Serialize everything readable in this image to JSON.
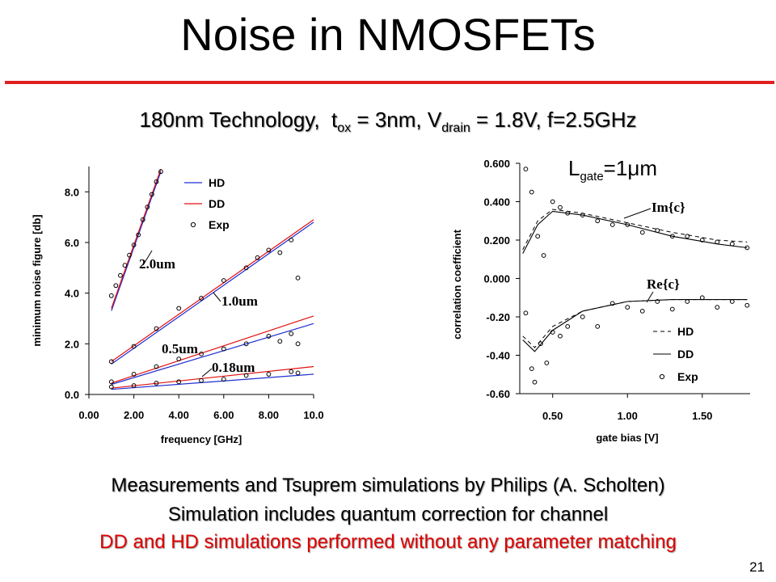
{
  "slide": {
    "title": "Noise in NMOSFETs",
    "subtitle_main": "180nm Technology,",
    "subtitle_t": "t",
    "subtitle_t_sub": "ox",
    "subtitle_mid": " = 3nm, V",
    "subtitle_v_sub": "drain",
    "subtitle_end": " = 1.8V, f=2.5GHz",
    "lgate_L": "L",
    "lgate_sub": "gate",
    "lgate_eq": "=1",
    "lgate_mu": "μ",
    "lgate_unit": "m",
    "bottom_lines": [
      "Measurements and Tsuprem simulations by Philips (A. Scholten)",
      "Simulation includes quantum correction for channel",
      "DD and HD simulations performed without any parameter matching"
    ],
    "page_number": "21"
  },
  "colors": {
    "accent_red": "#e02020",
    "hd_line": "#1f2fd0",
    "dd_line": "#e01010"
  },
  "chart_data": [
    {
      "type": "line",
      "title": "",
      "xlabel": "frequency  [GHz]",
      "ylabel": "minimum noise figure  [db]",
      "xlim": [
        0,
        10
      ],
      "ylim": [
        0,
        9
      ],
      "xticks": [
        "0.00",
        "2.00",
        "4.00",
        "6.00",
        "8.00",
        "10.0"
      ],
      "yticks": [
        "0.0",
        "2.0",
        "4.0",
        "6.0",
        "8.0"
      ],
      "legend": [
        "HD",
        "DD",
        "Exp"
      ],
      "legend_position": "top-right",
      "annotations": [
        "2.0um",
        "1.0um",
        "0.5um",
        "0.18um"
      ],
      "series": [
        {
          "annotation": "2.0um",
          "hd": [
            [
              1.0,
              3.3
            ],
            [
              3.2,
              8.8
            ]
          ],
          "dd": [
            [
              1.0,
              3.4
            ],
            [
              3.2,
              8.9
            ]
          ],
          "exp": [
            [
              1.0,
              3.9
            ],
            [
              1.2,
              4.3
            ],
            [
              1.4,
              4.7
            ],
            [
              1.6,
              5.1
            ],
            [
              1.8,
              5.5
            ],
            [
              2.0,
              5.9
            ],
            [
              2.2,
              6.3
            ],
            [
              2.4,
              6.9
            ],
            [
              2.6,
              7.4
            ],
            [
              2.8,
              7.9
            ],
            [
              3.0,
              8.4
            ],
            [
              3.2,
              8.8
            ]
          ]
        },
        {
          "annotation": "1.0um",
          "hd": [
            [
              1.0,
              1.2
            ],
            [
              10.0,
              6.8
            ]
          ],
          "dd": [
            [
              1.0,
              1.3
            ],
            [
              10.0,
              6.9
            ]
          ],
          "exp": [
            [
              1.0,
              1.3
            ],
            [
              2.0,
              1.9
            ],
            [
              3.0,
              2.6
            ],
            [
              4.0,
              3.4
            ],
            [
              5.0,
              3.8
            ],
            [
              6.0,
              4.5
            ],
            [
              7.0,
              5.0
            ],
            [
              7.5,
              5.4
            ],
            [
              8.0,
              5.7
            ],
            [
              8.5,
              5.6
            ],
            [
              9.0,
              6.1
            ],
            [
              9.3,
              4.6
            ]
          ]
        },
        {
          "annotation": "0.5um",
          "hd": [
            [
              1.0,
              0.4
            ],
            [
              10.0,
              2.8
            ]
          ],
          "dd": [
            [
              1.0,
              0.45
            ],
            [
              10.0,
              3.1
            ]
          ],
          "exp": [
            [
              1.0,
              0.5
            ],
            [
              2.0,
              0.8
            ],
            [
              3.0,
              1.1
            ],
            [
              4.0,
              1.4
            ],
            [
              5.0,
              1.6
            ],
            [
              6.0,
              1.8
            ],
            [
              7.0,
              2.0
            ],
            [
              8.0,
              2.3
            ],
            [
              8.5,
              2.1
            ],
            [
              9.0,
              2.4
            ],
            [
              9.3,
              2.0
            ]
          ]
        },
        {
          "annotation": "0.18um",
          "hd": [
            [
              1.0,
              0.2
            ],
            [
              10.0,
              0.8
            ]
          ],
          "dd": [
            [
              1.0,
              0.25
            ],
            [
              10.0,
              1.1
            ]
          ],
          "exp": [
            [
              1.0,
              0.3
            ],
            [
              2.0,
              0.35
            ],
            [
              3.0,
              0.45
            ],
            [
              4.0,
              0.5
            ],
            [
              5.0,
              0.55
            ],
            [
              6.0,
              0.6
            ],
            [
              7.0,
              0.75
            ],
            [
              8.0,
              0.8
            ],
            [
              9.0,
              0.9
            ],
            [
              9.3,
              0.85
            ]
          ]
        }
      ]
    },
    {
      "type": "line",
      "title": "",
      "xlabel": "gate bias  [V]",
      "ylabel": "correlation coefficient",
      "xlim": [
        0.28,
        1.82
      ],
      "ylim": [
        -0.6,
        0.6
      ],
      "xticks": [
        "0.50",
        "1.00",
        "1.50"
      ],
      "yticks": [
        "0.600",
        "0.400",
        "0.200",
        "0.000",
        "-0.20",
        "-0.40",
        "-0.60"
      ],
      "legend": [
        "HD",
        "DD",
        "Exp"
      ],
      "legend_position": "bottom-right",
      "annotations": [
        "Im{c}",
        "Re{c}"
      ],
      "series": [
        {
          "name": "Im{c}",
          "hd": [
            [
              0.3,
              0.15
            ],
            [
              0.4,
              0.3
            ],
            [
              0.5,
              0.36
            ],
            [
              0.7,
              0.34
            ],
            [
              1.0,
              0.29
            ],
            [
              1.3,
              0.24
            ],
            [
              1.6,
              0.2
            ],
            [
              1.8,
              0.19
            ]
          ],
          "dd": [
            [
              0.3,
              0.13
            ],
            [
              0.4,
              0.28
            ],
            [
              0.5,
              0.35
            ],
            [
              0.7,
              0.33
            ],
            [
              1.0,
              0.28
            ],
            [
              1.3,
              0.22
            ],
            [
              1.6,
              0.18
            ],
            [
              1.8,
              0.16
            ]
          ],
          "exp": [
            [
              0.32,
              0.57
            ],
            [
              0.36,
              0.45
            ],
            [
              0.4,
              0.22
            ],
            [
              0.44,
              0.12
            ],
            [
              0.5,
              0.4
            ],
            [
              0.55,
              0.37
            ],
            [
              0.6,
              0.34
            ],
            [
              0.7,
              0.33
            ],
            [
              0.8,
              0.3
            ],
            [
              0.9,
              0.28
            ],
            [
              1.0,
              0.28
            ],
            [
              1.1,
              0.24
            ],
            [
              1.2,
              0.25
            ],
            [
              1.3,
              0.22
            ],
            [
              1.4,
              0.22
            ],
            [
              1.5,
              0.2
            ],
            [
              1.6,
              0.19
            ],
            [
              1.7,
              0.18
            ],
            [
              1.8,
              0.16
            ]
          ]
        },
        {
          "name": "Re{c}",
          "hd": [
            [
              0.3,
              -0.3
            ],
            [
              0.38,
              -0.36
            ],
            [
              0.5,
              -0.25
            ],
            [
              0.7,
              -0.17
            ],
            [
              1.0,
              -0.12
            ],
            [
              1.3,
              -0.11
            ],
            [
              1.8,
              -0.11
            ]
          ],
          "dd": [
            [
              0.3,
              -0.32
            ],
            [
              0.38,
              -0.38
            ],
            [
              0.5,
              -0.27
            ],
            [
              0.7,
              -0.17
            ],
            [
              1.0,
              -0.12
            ],
            [
              1.3,
              -0.11
            ],
            [
              1.8,
              -0.11
            ]
          ],
          "exp": [
            [
              0.32,
              -0.18
            ],
            [
              0.36,
              -0.47
            ],
            [
              0.38,
              -0.54
            ],
            [
              0.42,
              -0.34
            ],
            [
              0.46,
              -0.44
            ],
            [
              0.5,
              -0.28
            ],
            [
              0.55,
              -0.3
            ],
            [
              0.6,
              -0.25
            ],
            [
              0.7,
              -0.2
            ],
            [
              0.8,
              -0.25
            ],
            [
              0.9,
              -0.13
            ],
            [
              1.0,
              -0.15
            ],
            [
              1.1,
              -0.17
            ],
            [
              1.2,
              -0.12
            ],
            [
              1.3,
              -0.16
            ],
            [
              1.4,
              -0.12
            ],
            [
              1.5,
              -0.1
            ],
            [
              1.6,
              -0.15
            ],
            [
              1.7,
              -0.12
            ],
            [
              1.8,
              -0.14
            ]
          ]
        }
      ]
    }
  ]
}
